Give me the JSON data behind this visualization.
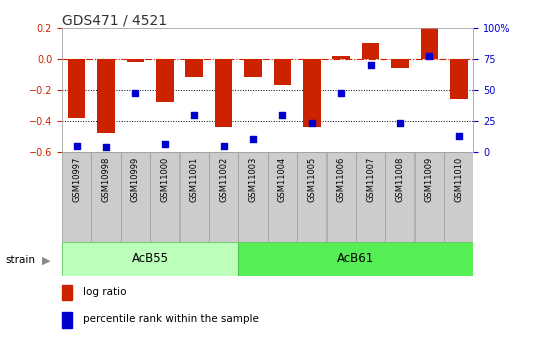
{
  "title": "GDS471 / 4521",
  "samples": [
    "GSM10997",
    "GSM10998",
    "GSM10999",
    "GSM11000",
    "GSM11001",
    "GSM11002",
    "GSM11003",
    "GSM11004",
    "GSM11005",
    "GSM11006",
    "GSM11007",
    "GSM11008",
    "GSM11009",
    "GSM11010"
  ],
  "log_ratio": [
    -0.38,
    -0.48,
    -0.02,
    -0.28,
    -0.12,
    -0.44,
    -0.12,
    -0.17,
    -0.44,
    0.015,
    0.1,
    -0.06,
    0.2,
    -0.26
  ],
  "percentile": [
    5,
    4,
    47,
    6,
    30,
    5,
    10,
    30,
    23,
    47,
    70,
    23,
    77,
    13
  ],
  "groups": [
    {
      "label": "AcB55",
      "start": 0,
      "end": 5,
      "color": "#bbffbb"
    },
    {
      "label": "AcB61",
      "start": 6,
      "end": 13,
      "color": "#55ee55"
    }
  ],
  "bar_color": "#cc2200",
  "point_color": "#0000cc",
  "ylim_left": [
    -0.6,
    0.2
  ],
  "ylim_right": [
    0,
    100
  ],
  "hline_y": 0.0,
  "dotted_lines": [
    -0.2,
    -0.4
  ],
  "yticks_left": [
    -0.6,
    -0.4,
    -0.2,
    0.0,
    0.2
  ],
  "yticks_right": [
    0,
    25,
    50,
    75,
    100
  ],
  "ytick_labels_right": [
    "0",
    "25",
    "50",
    "75",
    "100%"
  ],
  "legend_items": [
    {
      "label": "log ratio",
      "color": "#cc2200"
    },
    {
      "label": "percentile rank within the sample",
      "color": "#0000cc"
    }
  ],
  "title_color": "#333333",
  "sample_box_color": "#cccccc",
  "sample_box_edge": "#999999"
}
